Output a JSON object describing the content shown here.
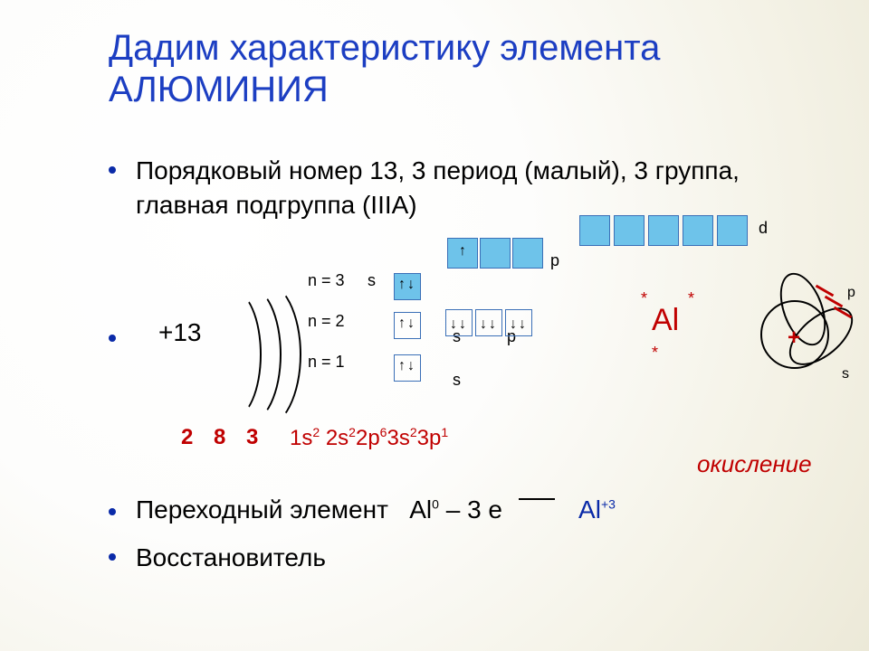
{
  "title_line1": "Дадим характеристику элемента",
  "title_line2": "АЛЮМИНИЯ",
  "bullet1": "Порядковый номер 13, 3 период (малый), 3 группа, главная подгруппа (IIIA)",
  "charge": "+13",
  "levels": {
    "n3": "n = 3",
    "n2": "n = 2",
    "n1": "n = 1"
  },
  "sublabels": {
    "s_top": "s",
    "s2": "s",
    "p2": "p",
    "s1": "s",
    "p_top": "p",
    "d_top": "d"
  },
  "shell_numbers": "2 8 3",
  "electron_config_html": "1s<sup>2</sup> 2s<sup>2</sup>2p<sup>6</sup>3s<sup>2</sup>3p<sup>1</sup>",
  "al_symbol": "Al",
  "oxidation_label": "окисление",
  "bullet3_label": "Переходный элемент",
  "transition_html": "Al<sup>0</sup> – 3 e <span class=\"arrow-long\"></span> <span class=\"val\">Al<sup>+3</sup></span>",
  "bullet4": "Восстановитель",
  "colors": {
    "title": "#1c3ec2",
    "bullet_dot": "#0a2aa8",
    "body_text": "#000000",
    "emphasis_red": "#c00000",
    "orbital_fill": "#6ec3ea",
    "orbital_border": "#3a6fb7"
  },
  "orbitals": {
    "n1_s": {
      "filled": false,
      "arrows": "↑↓"
    },
    "n2_s": {
      "filled": false,
      "arrows": "↑↓"
    },
    "n2_p": [
      {
        "filled": false,
        "arrows": "↓↓"
      },
      {
        "filled": false,
        "arrows": "↓↓"
      },
      {
        "filled": false,
        "arrows": "↓↓"
      }
    ],
    "n3_s": {
      "filled": true,
      "arrows": "↑↓"
    },
    "n3_p": [
      {
        "filled": true,
        "arrows": "↑"
      },
      {
        "filled": true,
        "arrows": ""
      },
      {
        "filled": true,
        "arrows": ""
      }
    ],
    "n3_d": [
      {
        "filled": true
      },
      {
        "filled": true
      },
      {
        "filled": true
      },
      {
        "filled": true
      },
      {
        "filled": true
      }
    ]
  },
  "diagram_labels": {
    "p": "p",
    "s": "s"
  }
}
